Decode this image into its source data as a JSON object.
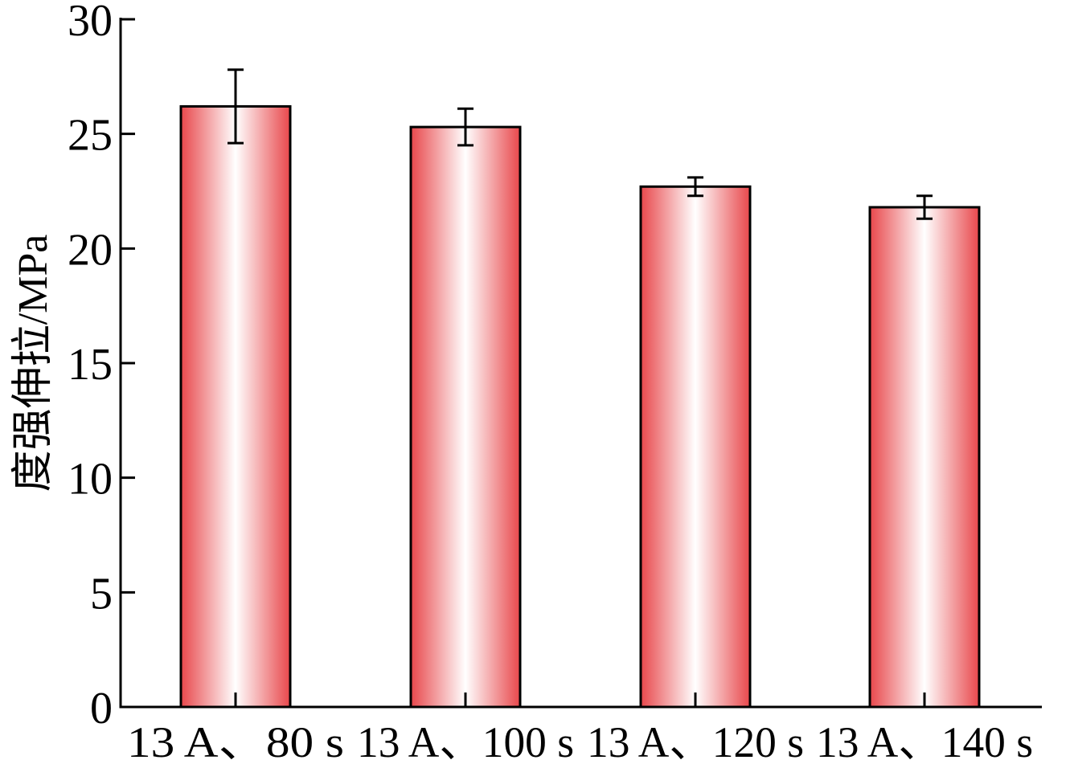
{
  "chart_data": {
    "type": "bar",
    "title": "",
    "xlabel": "",
    "ylabel": "度强伸拉/MPa",
    "categories": [
      "13 A、80 s",
      "13 A、100 s",
      "13 A、120 s",
      "13 A、140 s"
    ],
    "values": [
      26.2,
      25.3,
      22.7,
      21.8
    ],
    "errors": [
      1.6,
      0.8,
      0.4,
      0.5
    ],
    "ylim": [
      0,
      30
    ],
    "yticks": [
      0,
      5,
      10,
      15,
      20,
      25,
      30
    ],
    "grid": false,
    "bar_color": "#e8474b",
    "bar_highlight_color": "#ffffff",
    "axis_color": "#000000"
  }
}
